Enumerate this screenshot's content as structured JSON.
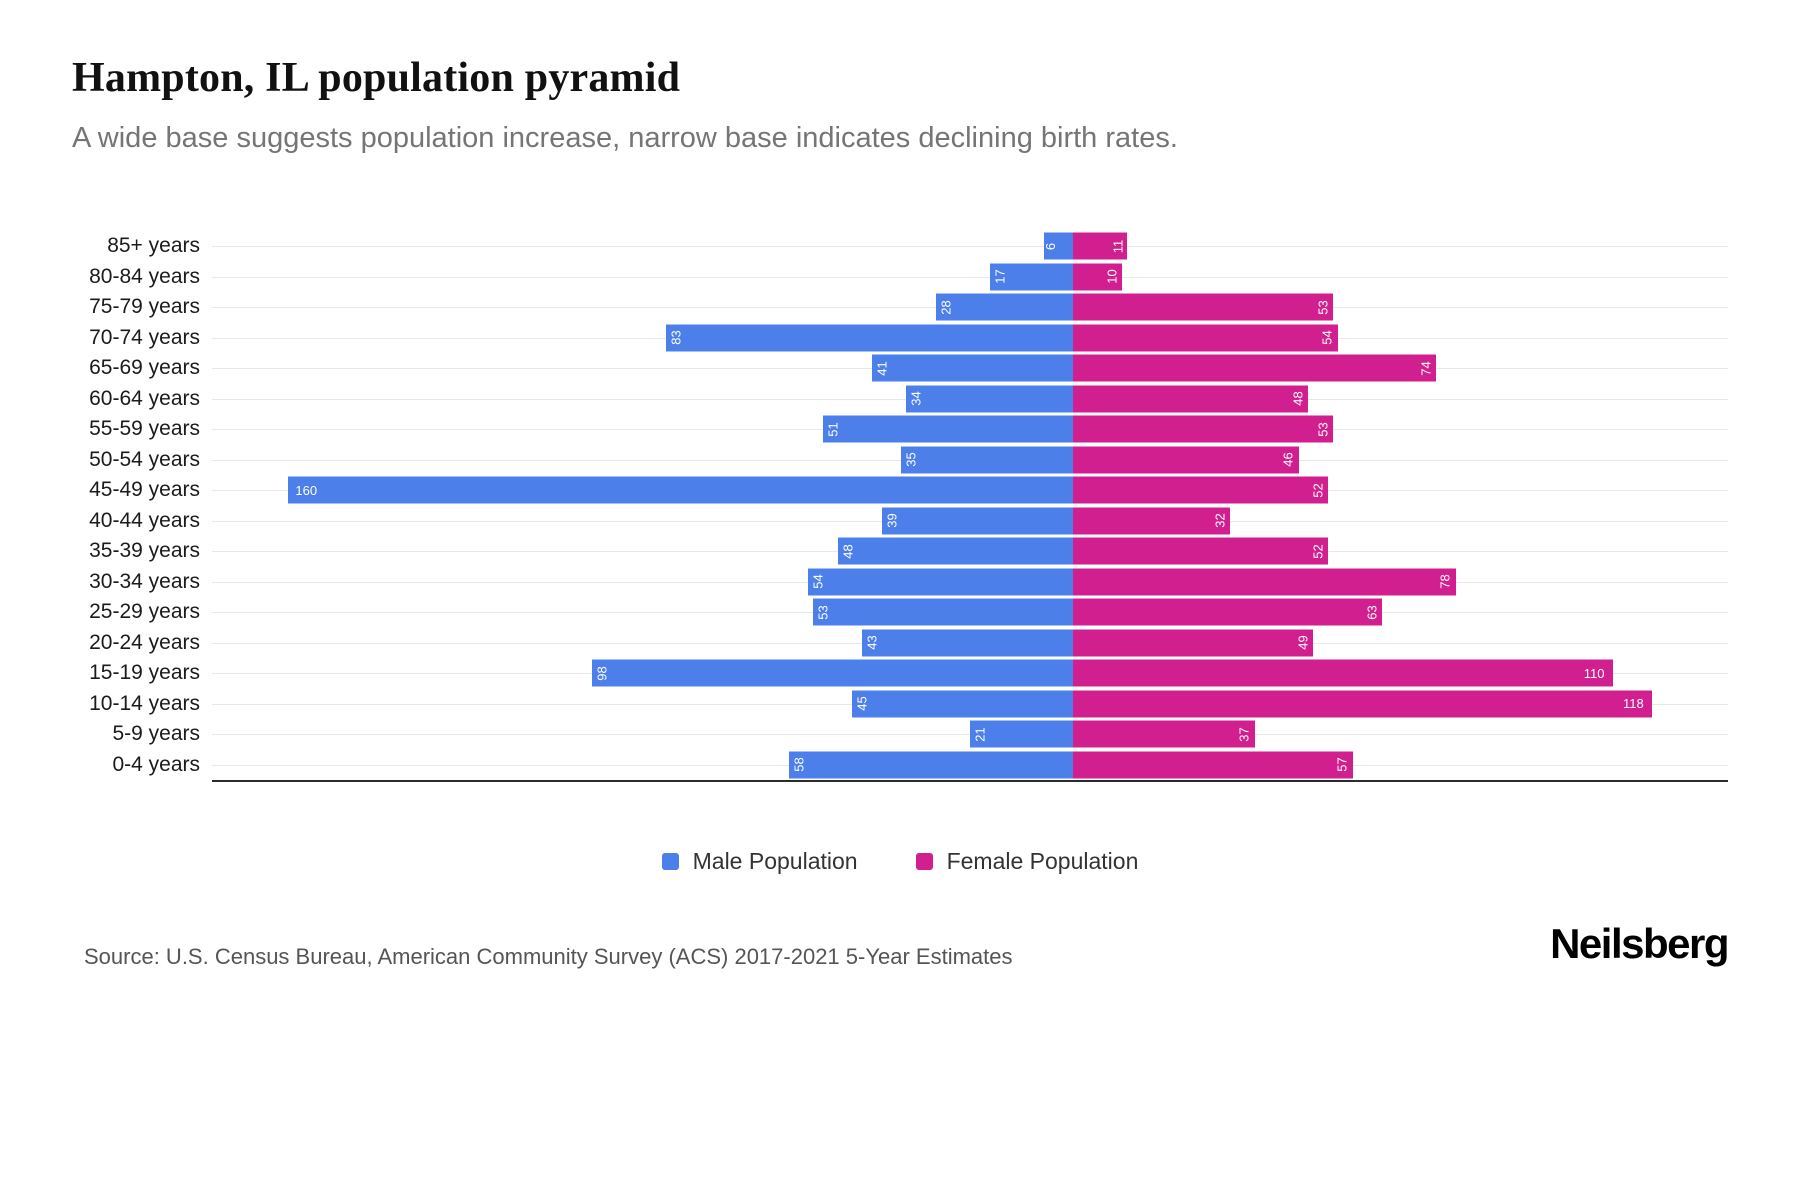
{
  "header": {
    "title": "Hampton, IL population pyramid",
    "subtitle": "A wide base suggests population increase, narrow base indicates declining birth rates."
  },
  "chart_data": {
    "type": "bar",
    "variant": "population-pyramid",
    "title": "Hampton, IL population pyramid",
    "categories": [
      "85+ years",
      "80-84 years",
      "75-79 years",
      "70-74 years",
      "65-69 years",
      "60-64 years",
      "55-59 years",
      "50-54 years",
      "45-49 years",
      "40-44 years",
      "35-39 years",
      "30-34 years",
      "25-29 years",
      "20-24 years",
      "15-19 years",
      "10-14 years",
      "5-9 years",
      "0-4 years"
    ],
    "series": [
      {
        "name": "Male Population",
        "direction": "left",
        "color": "#4c7fe9",
        "values": [
          6,
          17,
          28,
          83,
          41,
          34,
          51,
          35,
          160,
          39,
          48,
          54,
          53,
          43,
          98,
          45,
          21,
          58
        ]
      },
      {
        "name": "Female Population",
        "direction": "right",
        "color": "#d11f8f",
        "values": [
          11,
          10,
          53,
          54,
          74,
          48,
          53,
          46,
          52,
          32,
          52,
          78,
          63,
          49,
          110,
          118,
          37,
          57
        ]
      }
    ],
    "grid": true,
    "legend_position": "bottom",
    "value_labels": "inside-bar-ends, white, rotated 90deg when value < 100"
  },
  "legend": {
    "items": [
      {
        "label": "Male Population",
        "color": "#4c7fe9"
      },
      {
        "label": "Female Population",
        "color": "#d11f8f"
      }
    ]
  },
  "footer": {
    "source": "Source: U.S. Census Bureau, American Community Survey (ACS) 2017-2021 5-Year Estimates",
    "brand": "Neilsberg"
  }
}
